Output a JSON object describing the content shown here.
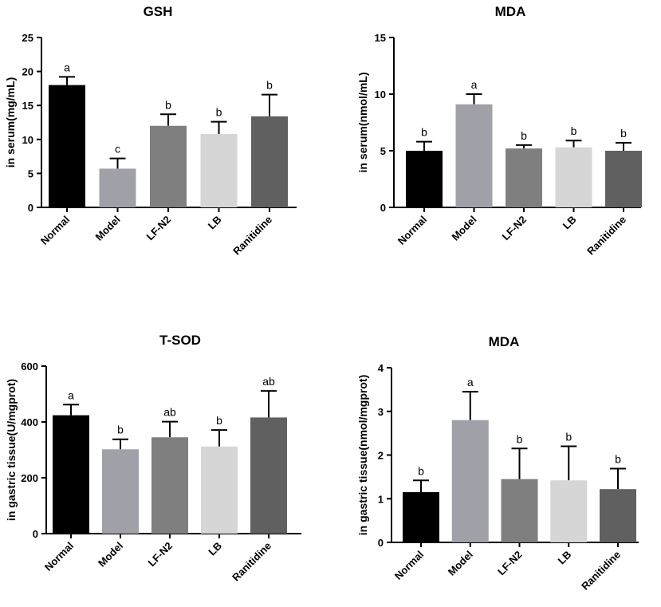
{
  "figure": {
    "categories": [
      "Normal",
      "Model",
      "LF-N2",
      "LB",
      "Ranitidine"
    ],
    "colors": [
      "#000000",
      "#a0a0a8",
      "#7f7f7f",
      "#d6d6d6",
      "#606060"
    ]
  },
  "chart_data": [
    {
      "type": "bar",
      "title": "GSH",
      "ylabel": "in serum(mg/mL)",
      "categories": [
        "Normal",
        "Model",
        "LF-N2",
        "LB",
        "Ranitidine"
      ],
      "values": [
        18.0,
        5.7,
        12.0,
        10.8,
        13.4
      ],
      "errors": [
        1.2,
        1.5,
        1.7,
        1.8,
        3.2
      ],
      "letters": [
        "a",
        "c",
        "b",
        "b",
        "b"
      ],
      "ylim": [
        0,
        25
      ],
      "yticks": [
        0,
        5,
        10,
        15,
        20,
        25
      ]
    },
    {
      "type": "bar",
      "title": "MDA",
      "ylabel": "in serum(nmol/mL)",
      "categories": [
        "Normal",
        "Model",
        "LF-N2",
        "LB",
        "Ranitidine"
      ],
      "values": [
        5.0,
        9.1,
        5.2,
        5.3,
        5.0
      ],
      "errors": [
        0.8,
        0.9,
        0.3,
        0.6,
        0.7
      ],
      "letters": [
        "b",
        "a",
        "b",
        "b",
        "b"
      ],
      "ylim": [
        0,
        15
      ],
      "yticks": [
        0,
        5,
        10,
        15
      ]
    },
    {
      "type": "bar",
      "title": "T-SOD",
      "ylabel": "in gastric tissue(U/mgprot)",
      "categories": [
        "Normal",
        "Model",
        "LF-N2",
        "LB",
        "Ranitidine"
      ],
      "values": [
        424,
        302,
        345,
        312,
        416
      ],
      "errors": [
        38,
        36,
        56,
        59,
        95
      ],
      "letters": [
        "a",
        "b",
        "ab",
        "b",
        "ab"
      ],
      "ylim": [
        0,
        600
      ],
      "yticks": [
        0,
        200,
        400,
        600
      ]
    },
    {
      "type": "bar",
      "title": "MDA",
      "ylabel": "in gastric tissue(nmol/mgprot)",
      "categories": [
        "Normal",
        "Model",
        "LF-N2",
        "LB",
        "Ranitidine"
      ],
      "values": [
        1.15,
        2.8,
        1.45,
        1.42,
        1.22
      ],
      "errors": [
        0.27,
        0.65,
        0.7,
        0.78,
        0.47
      ],
      "letters": [
        "b",
        "a",
        "b",
        "b",
        "b"
      ],
      "ylim": [
        0,
        4
      ],
      "yticks": [
        0,
        1,
        2,
        3,
        4
      ]
    }
  ]
}
